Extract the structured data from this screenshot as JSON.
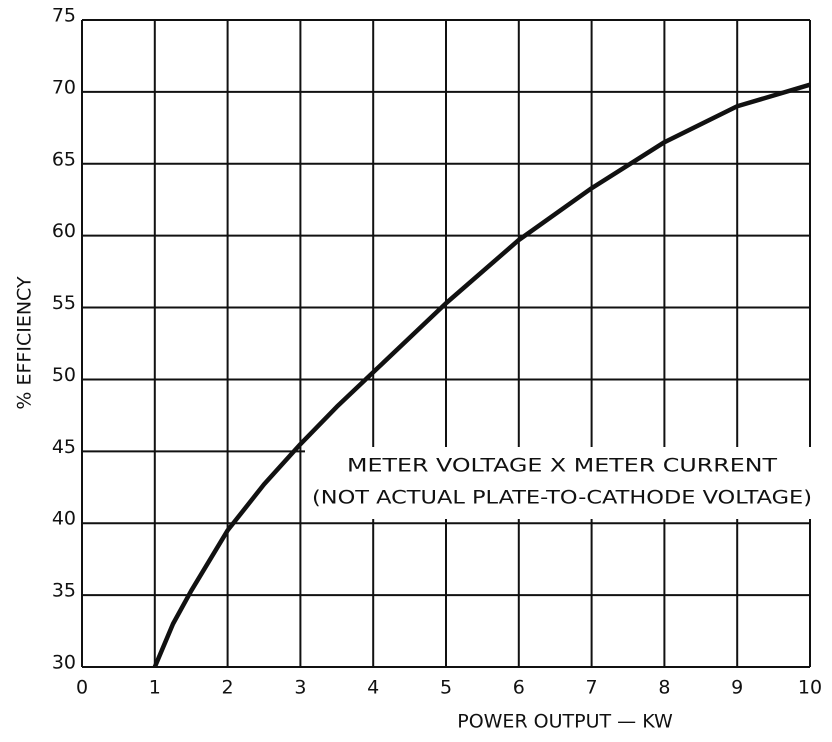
{
  "chart_data": {
    "type": "line",
    "x": [
      1,
      1.25,
      1.5,
      2,
      2.5,
      3,
      3.5,
      4,
      5,
      6,
      7,
      8,
      9,
      10
    ],
    "series": [
      {
        "name": null,
        "color": "#111111",
        "values": [
          30,
          33,
          35.3,
          39.5,
          42.7,
          45.5,
          48.1,
          50.5,
          55.3,
          59.7,
          63.3,
          66.5,
          69,
          70.5
        ]
      }
    ],
    "xlim": [
      0,
      10
    ],
    "xticks": [
      0,
      1,
      2,
      3,
      4,
      5,
      6,
      7,
      8,
      9,
      10
    ],
    "ylim": [
      30,
      75
    ],
    "yticks": [
      30,
      35,
      40,
      45,
      50,
      55,
      60,
      65,
      70,
      75
    ],
    "grid": true,
    "xlabel": "POWER OUTPUT — KW",
    "ylabel": "% EFFICIENCY",
    "annotations": [
      "METER VOLTAGE X METER CURRENT",
      "(NOT ACTUAL PLATE-TO-CATHODE VOLTAGE)"
    ]
  }
}
